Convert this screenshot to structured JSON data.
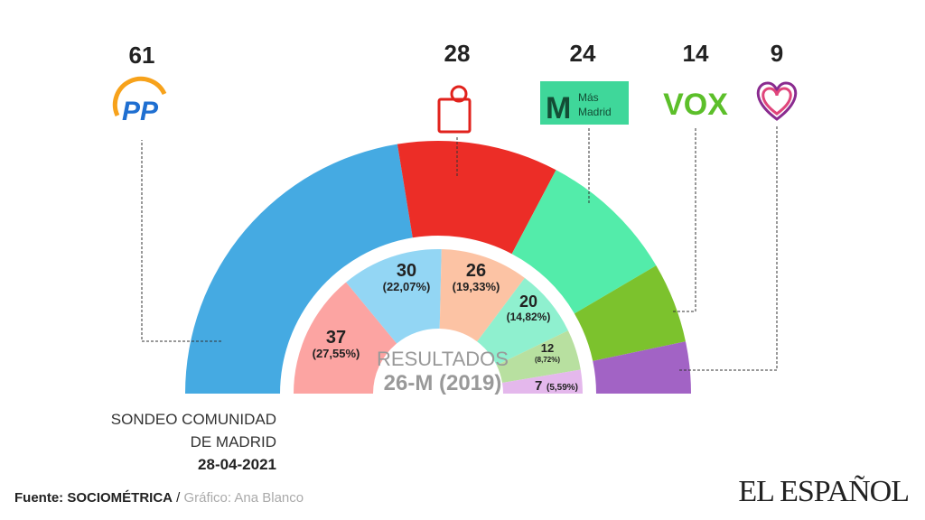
{
  "chart_data": [
    {
      "type": "pie",
      "subtype": "hemicycle",
      "title": "SONDEO COMUNIDAD DE MADRID",
      "date": "28-04-2021",
      "categories": [
        "PP",
        "PSOE",
        "Más Madrid",
        "VOX",
        "Unidas Podemos"
      ],
      "values": [
        61,
        28,
        24,
        14,
        9
      ],
      "colors": [
        "#45aae2",
        "#ec2d27",
        "#53ecaa",
        "#7cc22d",
        "#a263c5"
      ],
      "value_labels": [
        "61",
        "28",
        "24",
        "14",
        "9"
      ]
    },
    {
      "type": "pie",
      "subtype": "hemicycle",
      "title_line1": "RESULTADOS",
      "title_line2": "26-M (2019)",
      "values": [
        37,
        30,
        26,
        20,
        12,
        7
      ],
      "percent_labels": [
        "(27,55%)",
        "(22,07%)",
        "(19,33%)",
        "(14,82%)",
        "(8,72%)",
        "(5,59%)"
      ],
      "value_labels": [
        "37",
        "30",
        "26",
        "20",
        "12",
        "7"
      ],
      "colors": [
        "#fca4a2",
        "#93d6f4",
        "#fcc3a4",
        "#8ff0cf",
        "#b8e0a0",
        "#e4b8ec"
      ]
    }
  ],
  "logos": {
    "pp": "PP",
    "mm_line1": "Más",
    "mm_line2": "Madrid",
    "vox": "VOX"
  },
  "sondeo": {
    "line1": "SONDEO COMUNIDAD",
    "line2": "DE MADRID",
    "date": "28-04-2021"
  },
  "footer": {
    "source_label": "Fuente: SOCIOMÉTRICA",
    "sep": " / ",
    "credit": "Gráfico: Ana Blanco"
  },
  "brand": "EL ESPAÑOL"
}
